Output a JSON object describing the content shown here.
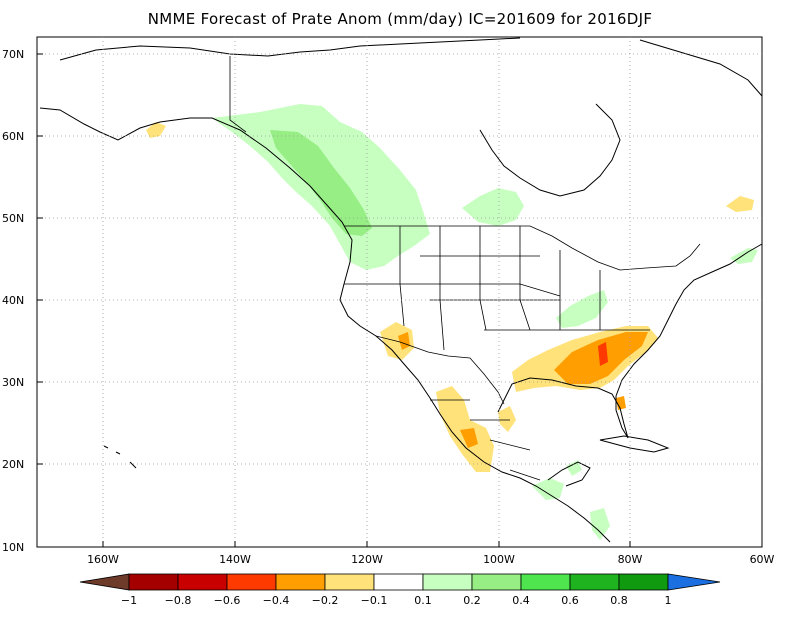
{
  "title": "NMME Forecast of Prate Anom (mm/day) IC=201609 for 2016DJF",
  "map": {
    "lat_ticks": [
      "70N",
      "60N",
      "50N",
      "40N",
      "30N",
      "20N",
      "10N"
    ],
    "lon_ticks": [
      "160W",
      "140W",
      "120W",
      "100W",
      "80W",
      "60W"
    ],
    "lat_range": [
      10,
      72
    ],
    "lon_range": [
      -170,
      -60
    ],
    "grid": "dotted",
    "anomaly_regions": [
      {
        "region": "Pacific Northwest / British Columbia coast",
        "level": "0.2 to 0.4",
        "sign": "wet"
      },
      {
        "region": "Alaska Panhandle and interior Canada",
        "level": "0.1 to 0.2",
        "sign": "wet"
      },
      {
        "region": "Great Lakes / western Ontario",
        "level": "0.1 to 0.2",
        "sign": "wet"
      },
      {
        "region": "Ohio Valley",
        "level": "0.1 to 0.2",
        "sign": "wet"
      },
      {
        "region": "Southern Alaska coast",
        "level": "-0.1 to -0.2",
        "sign": "dry"
      },
      {
        "region": "Southern California / Arizona",
        "level": "-0.1 to -0.4",
        "sign": "dry"
      },
      {
        "region": "Gulf Coast and Southeast US",
        "level": "-0.2 to -0.6",
        "sign": "dry"
      },
      {
        "region": "Northern Florida",
        "level": "-0.4 to -0.6",
        "sign": "dry"
      },
      {
        "region": "Texas coast",
        "level": "-0.1 to -0.2",
        "sign": "dry"
      },
      {
        "region": "Western Mexico",
        "level": "-0.1 to -0.4",
        "sign": "dry"
      },
      {
        "region": "Southern Mexico / Central America",
        "level": "0.1 to 0.2",
        "sign": "wet"
      },
      {
        "region": "Newfoundland / Nova Scotia",
        "level": "-0.1 to -0.2",
        "sign": "dry"
      }
    ]
  },
  "colorbar": {
    "labels": [
      "−1",
      "−0.8",
      "−0.6",
      "−0.4",
      "−0.2",
      "−0.1",
      "0.1",
      "0.2",
      "0.4",
      "0.6",
      "0.8",
      "1"
    ],
    "colors": [
      "#6e3a2a",
      "#a50000",
      "#c80000",
      "#ff3a00",
      "#ff9e00",
      "#ffe27a",
      "#ffffff",
      "#c7ffc1",
      "#96ee84",
      "#4ee54e",
      "#1fb41f",
      "#0f9a0f",
      "#1c6fe0"
    ]
  }
}
